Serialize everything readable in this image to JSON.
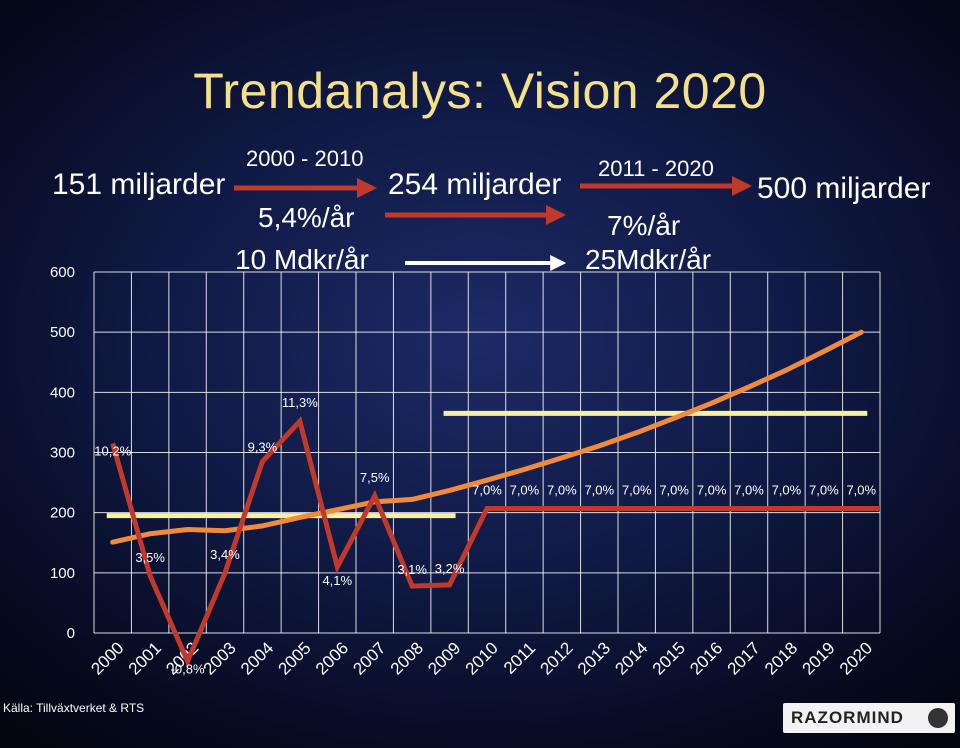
{
  "title": "Trendanalys: Vision 2020",
  "source": "Källa: Tillväxtverket & RTS",
  "logo": "RAZORMIND",
  "annotations": {
    "start_value": "151 miljarder",
    "period1": "2000 - 2010",
    "period1_rate": "5,4%/år",
    "period1_abs": "10 Mdkr/år",
    "mid_value": "254 miljarder",
    "period2": "2011 - 2020",
    "period2_rate": "7%/år",
    "period2_abs": "25Mdkr/år",
    "end_value": "500 miljarder"
  },
  "colors": {
    "title": "#f4e08a",
    "growth_line": "#c0392b",
    "total_line": "#f08a3c",
    "average_line": "#f7f0a0",
    "arrow_red": "#c0392b",
    "arrow_white": "#ffffff",
    "grid": "#ffffff"
  },
  "chart_data": {
    "type": "line",
    "x": [
      "2000",
      "2001",
      "2002",
      "2003",
      "2004",
      "2005",
      "2006",
      "2007",
      "2008",
      "2009",
      "2010",
      "2011",
      "2012",
      "2013",
      "2014",
      "2015",
      "2016",
      "2017",
      "2018",
      "2019",
      "2020"
    ],
    "ylim": [
      0,
      600
    ],
    "yticks": [
      "0",
      "100",
      "200",
      "300",
      "400",
      "500",
      "600"
    ],
    "grid": true,
    "series": [
      {
        "role": "total",
        "values": [
          151,
          165,
          172,
          170,
          178,
          192,
          205,
          218,
          222,
          237,
          254,
          272,
          291,
          311,
          333,
          357,
          382,
          409,
          437,
          468,
          500
        ]
      },
      {
        "role": "growth",
        "values": [
          315,
          95,
          -47,
          100,
          285,
          352,
          110,
          228,
          78,
          80,
          207,
          207,
          207,
          207,
          207,
          207,
          207,
          207,
          207,
          207,
          207
        ],
        "data_labels": [
          "10,2%",
          "3,5%",
          "-0,8%",
          "3,4%",
          "9,3%",
          "11,3%",
          "4,1%",
          "7,5%",
          "3,1%",
          "3,2%",
          "7,0%",
          "7,0%",
          "7,0%",
          "7,0%",
          "7,0%",
          "7,0%",
          "7,0%",
          "7,0%",
          "7,0%",
          "7,0%",
          "7,0%"
        ]
      },
      {
        "role": "average-2000-2010",
        "x_range": [
          "2000",
          "2009"
        ],
        "value": 195
      },
      {
        "role": "average-2011-2020",
        "x_range": [
          "2009",
          "2020"
        ],
        "value": 365
      }
    ]
  }
}
